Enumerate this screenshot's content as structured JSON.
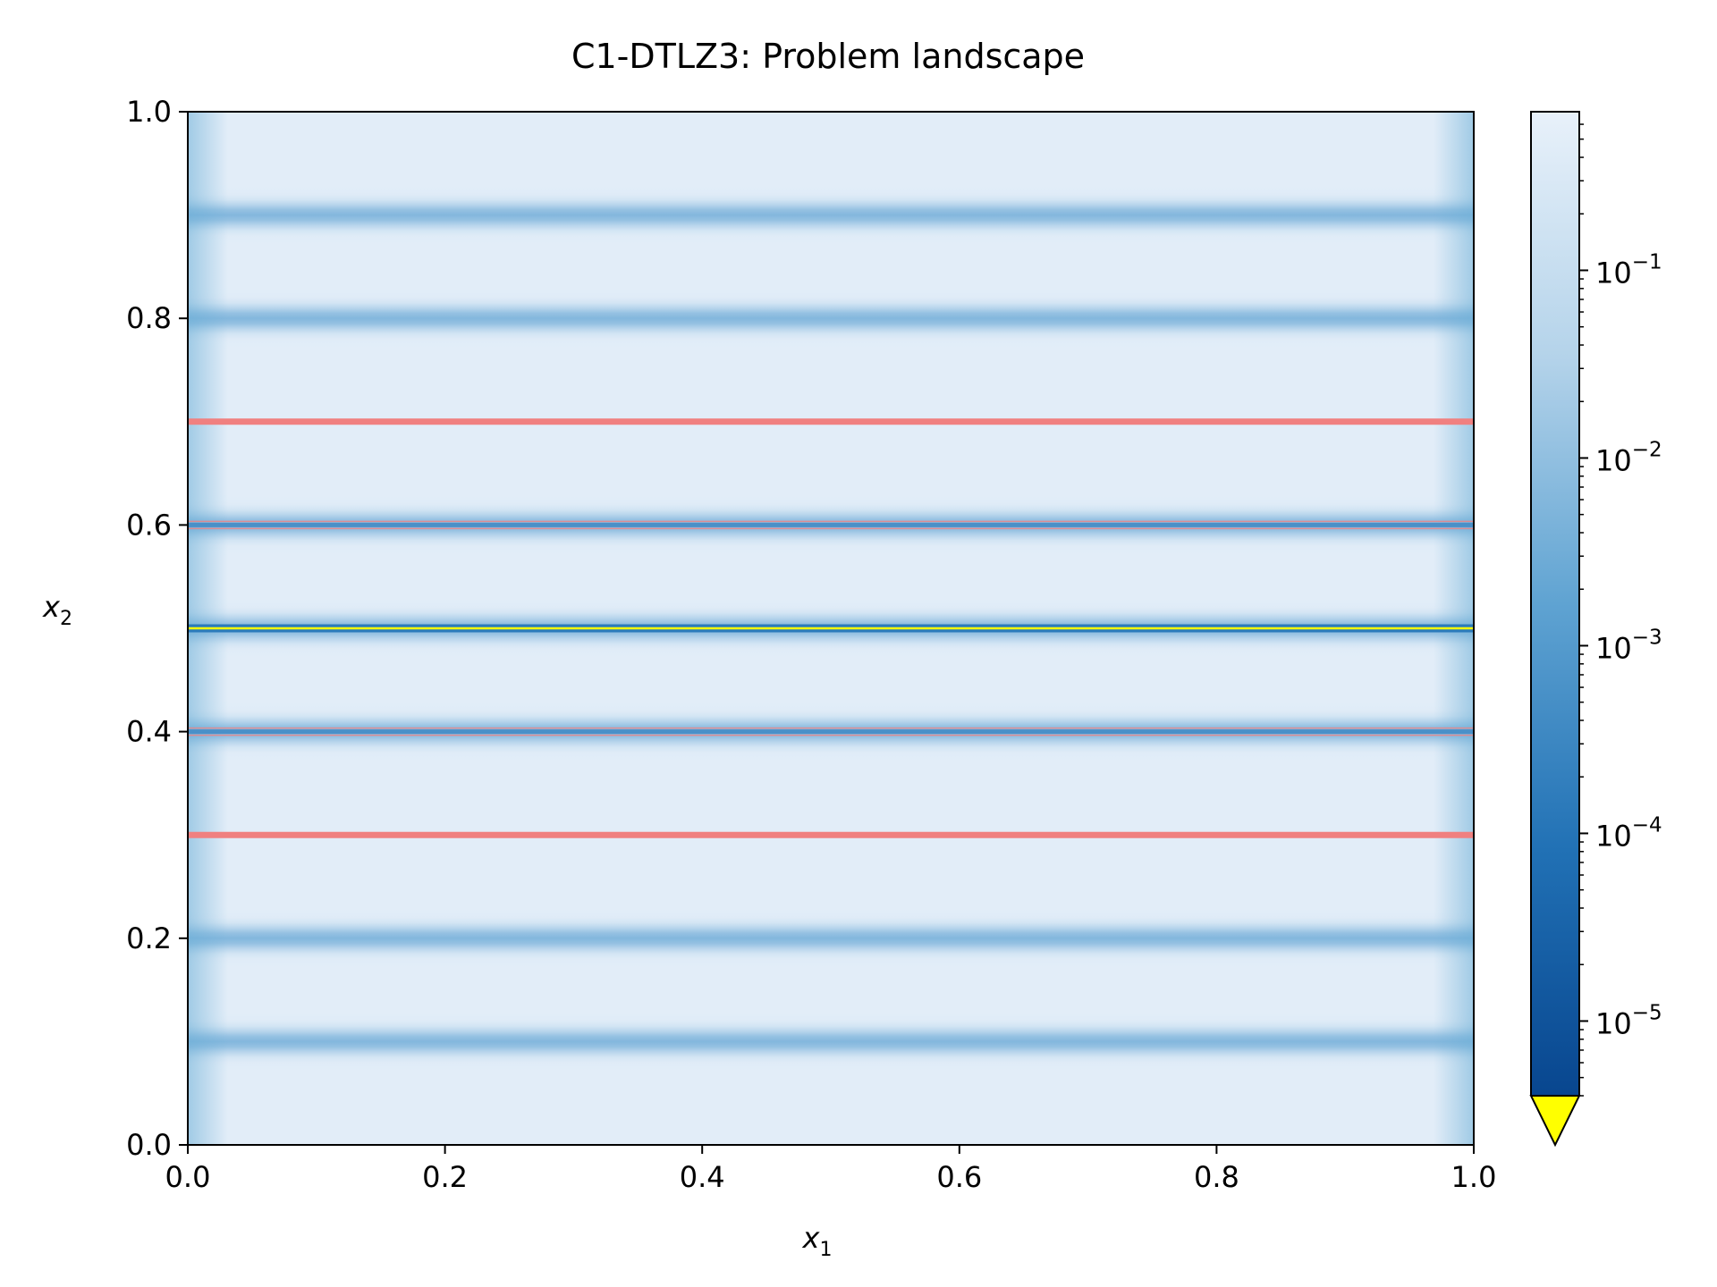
{
  "chart_data": {
    "type": "heatmap",
    "title": "C1-DTLZ3: Problem landscape",
    "xlabel": "x",
    "xlabel_sub": "1",
    "ylabel": "x",
    "ylabel_sub": "2",
    "xlim": [
      0.0,
      1.0
    ],
    "ylim": [
      0.0,
      1.0
    ],
    "xticks": [
      "0.0",
      "0.2",
      "0.4",
      "0.6",
      "0.8",
      "1.0"
    ],
    "yticks": [
      "0.0",
      "0.2",
      "0.4",
      "0.6",
      "0.8",
      "1.0"
    ],
    "colorbar": {
      "scale": "log",
      "colormap": "Blues_r",
      "range": [
        4e-06,
        0.7
      ],
      "ticks": [
        {
          "value": 0.1,
          "base": "10",
          "exp": "−1"
        },
        {
          "value": 0.01,
          "base": "10",
          "exp": "−2"
        },
        {
          "value": 0.001,
          "base": "10",
          "exp": "−3"
        },
        {
          "value": 0.0001,
          "base": "10",
          "exp": "−4"
        },
        {
          "value": 1e-05,
          "base": "10",
          "exp": "−5"
        }
      ],
      "under_color": "#ffff00"
    },
    "landscape": {
      "local_minima_x2": [
        0.1,
        0.2,
        0.4,
        0.6,
        0.8,
        0.9
      ],
      "global_minimum_x2": 0.5,
      "infeasible_lines_x2": [
        0.3,
        0.7
      ],
      "infeasible_color": "#f08080"
    },
    "grid": false
  }
}
